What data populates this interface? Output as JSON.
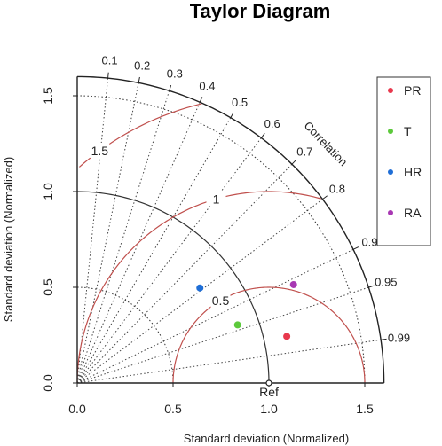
{
  "chart_data": {
    "type": "scatter",
    "subtype": "taylor-diagram",
    "title": "Taylor Diagram",
    "xlabel": "Standard deviation (Normalized)",
    "ylabel": "Standard deviation (Normalized)",
    "corr_axis_label": "Correlation",
    "xlim": [
      0,
      1.6
    ],
    "ylim": [
      0,
      1.6
    ],
    "x_ticks": [
      "0.0",
      "0.5",
      "1.0",
      "1.5"
    ],
    "y_ticks": [
      "0.0",
      "0.5",
      "1.0",
      "1.5"
    ],
    "correlation_ticks": [
      "0.1",
      "0.2",
      "0.3",
      "0.4",
      "0.5",
      "0.6",
      "0.7",
      "0.8",
      "0.9",
      "0.95",
      "0.99"
    ],
    "std_contours": [
      0.5,
      1.0,
      1.5
    ],
    "rms_contours": [
      0.5,
      1.0,
      1.5
    ],
    "rms_labels": [
      "0.5",
      "1",
      "1.5"
    ],
    "reference": {
      "label": "Ref",
      "std": 1.0,
      "corr": 1.0
    },
    "legend_position": "right",
    "series": [
      {
        "name": "PR",
        "color": "#e8384d",
        "std": 1.12,
        "corr": 0.976
      },
      {
        "name": "T",
        "color": "#5cc93b",
        "std": 0.89,
        "corr": 0.94
      },
      {
        "name": "HR",
        "color": "#1f6ed6",
        "std": 0.81,
        "corr": 0.79
      },
      {
        "name": "RA",
        "color": "#a838b3",
        "std": 1.24,
        "corr": 0.91
      }
    ],
    "colors": {
      "rms_contour": "#c0504d",
      "std_contour": "#333333",
      "correlation_line": "#444444"
    }
  }
}
